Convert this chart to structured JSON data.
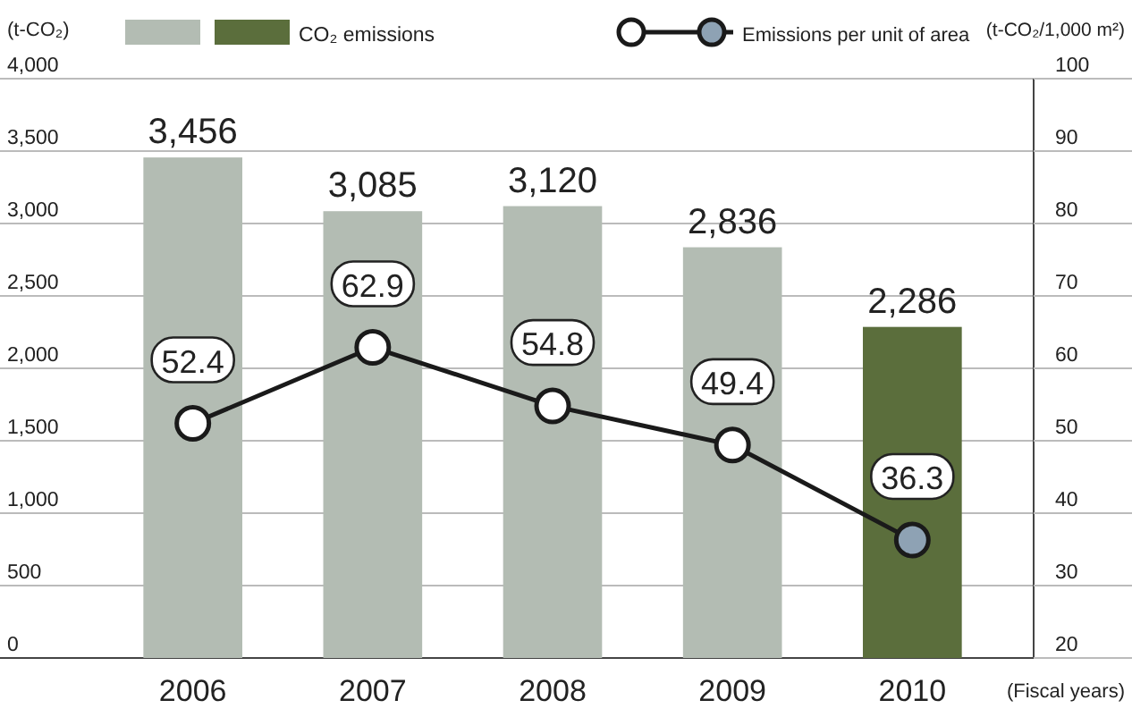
{
  "chart_data": {
    "type": "bar",
    "categories": [
      "2006",
      "2007",
      "2008",
      "2009",
      "2010"
    ],
    "ylabel": "(t-CO₂)",
    "y2label": "(t-CO₂/1,000 m²)",
    "xlabel": "(Fiscal years)",
    "series": [
      {
        "name": "CO₂ emissions",
        "colors": [
          "#b3bcb3",
          "#b3bcb3",
          "#b3bcb3",
          "#b3bcb3",
          "#5b6e3c"
        ],
        "values": [
          3456,
          3085,
          3120,
          2836,
          2286
        ],
        "value_labels": [
          "3,456",
          "3,085",
          "3,120",
          "2,836",
          "2,286"
        ]
      },
      {
        "name": "Emissions per unit of area",
        "type": "line",
        "axis": "y2",
        "color": "#1a1a1a",
        "colors": [
          "#ffffff",
          "#ffffff",
          "#ffffff",
          "#ffffff",
          "#8ea2b4"
        ],
        "marker": "circle",
        "values": [
          52.4,
          62.9,
          54.8,
          49.4,
          36.3
        ]
      }
    ],
    "ylim": [
      0,
      4000
    ],
    "yticks": [
      {
        "value": 0,
        "label": "0"
      },
      {
        "value": 500,
        "label": "500"
      },
      {
        "value": 1000,
        "label": "1,000"
      },
      {
        "value": 1500,
        "label": "1,500"
      },
      {
        "value": 2000,
        "label": "2,000"
      },
      {
        "value": 2500,
        "label": "2,500"
      },
      {
        "value": 3000,
        "label": "3,000"
      },
      {
        "value": 3500,
        "label": "3,500"
      },
      {
        "value": 4000,
        "label": "4,000"
      }
    ],
    "y2lim": [
      20,
      100
    ],
    "y2ticks": [
      20,
      30,
      40,
      50,
      60,
      70,
      80,
      90,
      100
    ],
    "grid": "y",
    "legend": "top",
    "data_labels": true
  }
}
